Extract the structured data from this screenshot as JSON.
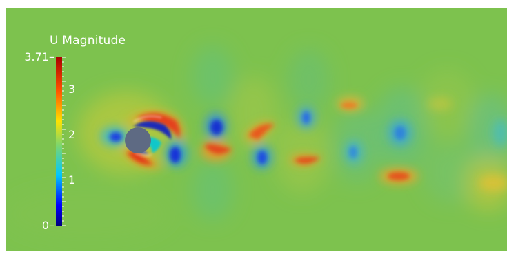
{
  "colorbar": {
    "title": "U Magnitude",
    "max_label": "3.71",
    "min_label": "0",
    "ticks": [
      {
        "value": 3,
        "label": "3"
      },
      {
        "value": 2,
        "label": "2"
      },
      {
        "value": 1,
        "label": "1"
      }
    ],
    "range": [
      0,
      3.71
    ],
    "colormap": [
      "#00007f",
      "#0000ff",
      "#00c8ff",
      "#7fd66b",
      "#ffe100",
      "#ff5400",
      "#aa0000"
    ]
  },
  "field": {
    "background_color": "#7dc24e"
  }
}
